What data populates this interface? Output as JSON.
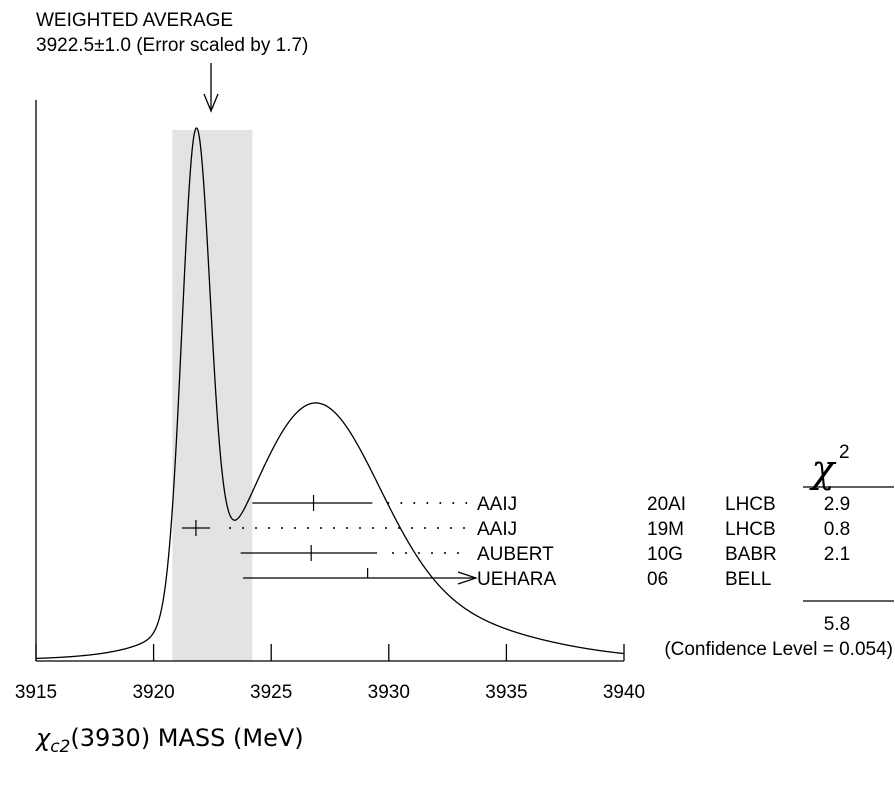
{
  "chart_data": {
    "type": "ideogram",
    "header": {
      "line1": "WEIGHTED AVERAGE",
      "line2": "3922.5±1.0 (Error scaled by 1.7)"
    },
    "weighted_average": 3922.5,
    "weighted_error": 1.0,
    "error_scale": 1.7,
    "xlabel_symbol": "χ",
    "xlabel_subscript": "c2",
    "xlabel_text": "(3930) MASS (MeV)",
    "xlim": [
      3915,
      3940
    ],
    "xticks": [
      3915,
      3920,
      3925,
      3930,
      3935,
      3940
    ],
    "xtick_labels": [
      "3915",
      "3920",
      "3925",
      "3930",
      "3935",
      "3940"
    ],
    "chi2_header": "χ",
    "chi2_sup": "2",
    "measurements": [
      {
        "author": "AAIJ",
        "ref": "20AI",
        "experiment": "LHCB",
        "chi2": "2.9",
        "value": 3926.8,
        "err_lo": 2.6,
        "err_hi": 2.5,
        "arrow": false
      },
      {
        "author": "AAIJ",
        "ref": "19M",
        "experiment": "LHCB",
        "chi2": "0.8",
        "value": 3921.8,
        "err_lo": 0.6,
        "err_hi": 0.6,
        "arrow": false
      },
      {
        "author": "AUBERT",
        "ref": "10G",
        "experiment": "BABR",
        "chi2": "2.1",
        "value": 3926.7,
        "err_lo": 3.0,
        "err_hi": 2.8,
        "arrow": false
      },
      {
        "author": "UEHARA",
        "ref": "06",
        "experiment": "BELL",
        "chi2": "",
        "value": 3929.1,
        "err_lo": 5.3,
        "err_hi": null,
        "arrow": true
      }
    ],
    "chi2_total": "5.8",
    "confidence_level": "(Confidence Level = 0.054)"
  }
}
